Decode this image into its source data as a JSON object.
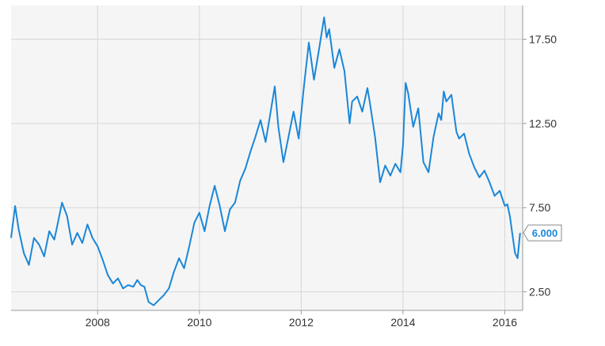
{
  "chart_data": {
    "type": "line",
    "title": "",
    "xlabel": "",
    "ylabel": "",
    "x_ticks": [
      "2008",
      "2010",
      "2012",
      "2014",
      "2016"
    ],
    "y_ticks": [
      "2.50",
      "7.50",
      "12.50",
      "17.50"
    ],
    "xlim": [
      2006.3,
      2016.35
    ],
    "ylim": [
      1.4,
      19.5
    ],
    "grid": true,
    "last_value_label": "6.000",
    "colors": {
      "line": "#1a87d8",
      "plot_bg": "#f5f5f5",
      "grid": "#d7d7d7",
      "axis": "#9a9a9a"
    },
    "series": [
      {
        "x": [
          2006.3,
          2006.38,
          2006.45,
          2006.55,
          2006.65,
          2006.75,
          2006.85,
          2006.95,
          2007.05,
          2007.15,
          2007.22,
          2007.3,
          2007.4,
          2007.5,
          2007.6,
          2007.7,
          2007.8,
          2007.9,
          2008.0,
          2008.1,
          2008.2,
          2008.3,
          2008.4,
          2008.5,
          2008.6,
          2008.7,
          2008.78,
          2008.85,
          2008.92,
          2009.0,
          2009.1,
          2009.2,
          2009.3,
          2009.4,
          2009.5,
          2009.6,
          2009.7,
          2009.8,
          2009.9,
          2010.0,
          2010.1,
          2010.2,
          2010.3,
          2010.4,
          2010.5,
          2010.6,
          2010.7,
          2010.8,
          2010.9,
          2011.0,
          2011.1,
          2011.2,
          2011.3,
          2011.4,
          2011.48,
          2011.55,
          2011.65,
          2011.75,
          2011.85,
          2011.95,
          2012.05,
          2012.15,
          2012.25,
          2012.35,
          2012.45,
          2012.5,
          2012.55,
          2012.65,
          2012.75,
          2012.85,
          2012.95,
          2013.0,
          2013.1,
          2013.2,
          2013.3,
          2013.35,
          2013.45,
          2013.55,
          2013.65,
          2013.75,
          2013.85,
          2013.95,
          2014.0,
          2014.05,
          2014.1,
          2014.2,
          2014.3,
          2014.4,
          2014.5,
          2014.6,
          2014.7,
          2014.75,
          2014.8,
          2014.85,
          2014.95,
          2015.05,
          2015.1,
          2015.2,
          2015.3,
          2015.4,
          2015.5,
          2015.6,
          2015.7,
          2015.8,
          2015.9,
          2016.0,
          2016.05,
          2016.1,
          2016.15,
          2016.2,
          2016.25,
          2016.3
        ],
        "y": [
          5.7,
          7.6,
          6.2,
          4.8,
          4.1,
          5.7,
          5.3,
          4.6,
          6.1,
          5.6,
          6.6,
          7.8,
          7.0,
          5.3,
          6.0,
          5.4,
          6.5,
          5.7,
          5.2,
          4.4,
          3.5,
          3.0,
          3.3,
          2.7,
          2.9,
          2.8,
          3.2,
          2.9,
          2.8,
          1.9,
          1.7,
          2.0,
          2.3,
          2.7,
          3.7,
          4.5,
          3.9,
          5.2,
          6.6,
          7.2,
          6.1,
          7.6,
          8.8,
          7.6,
          6.1,
          7.4,
          7.8,
          9.1,
          9.8,
          10.8,
          11.7,
          12.7,
          11.4,
          13.2,
          14.7,
          12.3,
          10.2,
          11.7,
          13.2,
          11.6,
          14.6,
          17.3,
          15.1,
          16.9,
          18.8,
          17.6,
          18.1,
          15.8,
          16.9,
          15.6,
          12.5,
          13.8,
          14.1,
          13.2,
          14.6,
          13.7,
          11.7,
          9.0,
          10.0,
          9.4,
          10.1,
          9.6,
          11.2,
          14.9,
          14.3,
          12.3,
          13.4,
          10.2,
          9.6,
          11.7,
          13.1,
          12.7,
          14.4,
          13.8,
          14.2,
          12.0,
          11.6,
          11.9,
          10.7,
          9.9,
          9.3,
          9.7,
          9.0,
          8.2,
          8.5,
          7.6,
          7.7,
          7.0,
          5.9,
          4.8,
          4.5,
          6.0
        ]
      }
    ]
  }
}
